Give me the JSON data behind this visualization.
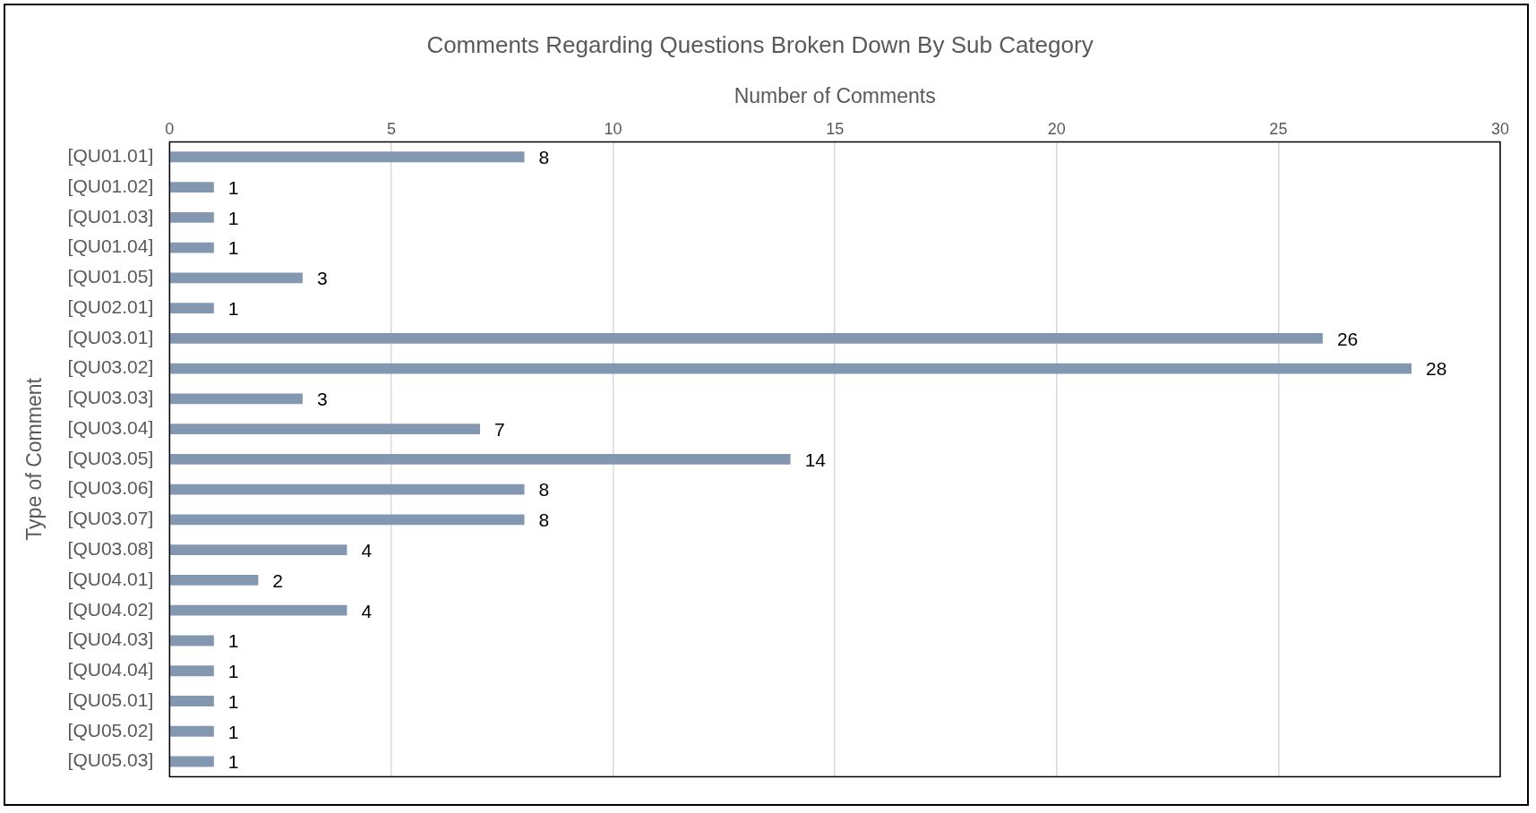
{
  "chart_data": {
    "type": "bar",
    "orientation": "horizontal",
    "title": "Comments Regarding Questions Broken Down By Sub Category",
    "xlabel": "Number of Comments",
    "ylabel": "Type of Comment",
    "categories": [
      "[QU01.01]",
      "[QU01.02]",
      "[QU01.03]",
      "[QU01.04]",
      "[QU01.05]",
      "[QU02.01]",
      "[QU03.01]",
      "[QU03.02]",
      "[QU03.03]",
      "[QU03.04]",
      "[QU03.05]",
      "[QU03.06]",
      "[QU03.07]",
      "[QU03.08]",
      "[QU04.01]",
      "[QU04.02]",
      "[QU04.03]",
      "[QU04.04]",
      "[QU05.01]",
      "[QU05.02]",
      "[QU05.03]"
    ],
    "values": [
      8,
      1,
      1,
      1,
      3,
      1,
      26,
      28,
      3,
      7,
      14,
      8,
      8,
      4,
      2,
      4,
      1,
      1,
      1,
      1,
      1
    ],
    "color": "#8497b0",
    "xlim": [
      0,
      30
    ],
    "xticks": [
      0,
      5,
      10,
      15,
      20,
      25,
      30
    ],
    "grid": "x",
    "legend": false,
    "data_labels": true
  }
}
